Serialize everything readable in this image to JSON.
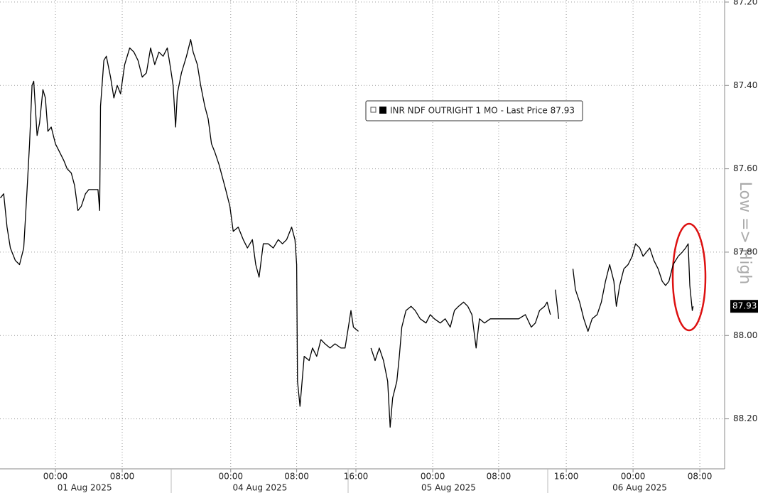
{
  "chart_data": {
    "type": "line",
    "series": [
      {
        "name": "INR NDF OUTRIGHT 1 MO - Last Price 87.93",
        "color": "#000000",
        "x": [
          -6.6,
          -6.2,
          -5.8,
          -5.4,
          -4.8,
          -4.3,
          -3.8,
          -3.4,
          -3.1,
          -2.8,
          -2.6,
          -2.2,
          -1.9,
          -1.5,
          -1.2,
          -0.9,
          -0.5,
          0,
          0.5,
          1.0,
          1.4,
          1.9,
          2.3,
          2.7,
          3.1,
          3.6,
          4.0,
          4.6,
          5.1,
          5.3,
          5.4,
          5.8,
          6.1,
          6.6,
          7.0,
          7.4,
          7.8,
          8.3,
          8.9,
          9.4,
          9.9,
          10.4,
          10.9,
          11.4,
          11.9,
          12.4,
          12.9,
          13.4,
          13.8,
          14.1,
          14.4,
          14.6,
          15.1,
          15.7,
          16.2,
          16.5,
          17.0,
          17.4,
          17.9,
          18.3,
          18.7,
          19.1,
          19.6,
          20.0,
          20.4,
          20.9,
          21.3,
          21.9,
          22.5,
          23.0,
          23.6,
          24.0,
          24.4,
          24.9,
          25.5,
          26.1,
          26.7,
          27.2,
          27.7,
          28.3,
          28.7,
          28.9,
          29.0,
          29.3,
          29.8,
          30.4,
          30.8,
          31.3,
          31.8,
          32.3,
          32.9,
          33.5,
          34.2,
          34.7,
          35.1,
          35.4,
          35.7,
          36.3,
          36.8,
          37.8,
          38.3,
          38.8,
          39.3,
          39.8,
          40.1,
          40.4,
          40.9,
          41.2,
          41.5,
          42.0,
          42.6,
          43.1,
          43.7,
          44.4,
          44.9,
          45.4,
          46.1,
          46.7,
          47.3,
          47.8,
          48.3,
          48.9,
          49.4,
          49.9,
          50.4,
          50.8,
          51.4,
          52.1,
          52.9,
          53.8,
          54.6,
          55.5,
          56.3,
          57.0,
          57.5,
          58.0,
          58.6,
          58.9,
          59.3,
          59.6,
          59.9,
          60.3,
          61.0,
          62.0,
          62.3,
          62.8,
          63.3,
          63.8,
          64.3,
          64.9,
          65.4,
          65.9,
          66.4,
          66.9,
          67.2,
          67.6,
          68.1,
          68.6,
          69.1,
          69.5,
          70.0,
          70.4,
          70.8,
          71.2,
          71.7,
          72.2,
          72.7,
          73.1,
          73.5,
          74.0,
          74.6,
          75.1,
          75.5,
          75.8,
          76.0,
          76.3,
          76.4
        ],
        "values": [
          87.67,
          87.66,
          87.74,
          87.79,
          87.82,
          87.83,
          87.79,
          87.65,
          87.54,
          87.4,
          87.39,
          87.52,
          87.49,
          87.41,
          87.43,
          87.51,
          87.5,
          87.54,
          87.56,
          87.58,
          87.6,
          87.61,
          87.64,
          87.7,
          87.69,
          87.66,
          87.65,
          87.65,
          87.65,
          87.7,
          87.45,
          87.34,
          87.33,
          87.38,
          87.43,
          87.4,
          87.42,
          87.35,
          87.31,
          87.32,
          87.34,
          87.38,
          87.37,
          87.31,
          87.35,
          87.32,
          87.33,
          87.31,
          87.36,
          87.4,
          87.5,
          87.42,
          87.37,
          87.33,
          87.29,
          87.32,
          87.35,
          87.4,
          87.45,
          87.48,
          87.54,
          87.56,
          87.59,
          87.62,
          87.65,
          87.69,
          87.75,
          87.74,
          87.77,
          87.79,
          87.77,
          87.83,
          87.86,
          87.78,
          87.78,
          87.79,
          87.77,
          87.78,
          87.77,
          87.74,
          87.77,
          87.83,
          88.11,
          88.17,
          88.05,
          88.06,
          88.03,
          88.05,
          88.01,
          88.02,
          88.03,
          88.02,
          88.03,
          88.03,
          87.98,
          87.94,
          87.98,
          87.99,
          null,
          88.03,
          88.06,
          88.03,
          88.06,
          88.11,
          88.22,
          88.15,
          88.11,
          88.05,
          87.98,
          87.94,
          87.93,
          87.94,
          87.96,
          87.97,
          87.95,
          87.96,
          87.97,
          87.96,
          87.98,
          87.94,
          87.93,
          87.92,
          87.93,
          87.95,
          88.03,
          87.96,
          87.97,
          87.96,
          87.96,
          87.96,
          87.96,
          87.96,
          87.95,
          87.98,
          87.97,
          87.94,
          87.93,
          87.92,
          87.95,
          null,
          87.89,
          87.96,
          null,
          87.84,
          87.89,
          87.92,
          87.96,
          87.99,
          87.96,
          87.95,
          87.92,
          87.87,
          87.83,
          87.87,
          87.93,
          87.88,
          87.84,
          87.83,
          87.81,
          87.78,
          87.79,
          87.81,
          87.8,
          87.79,
          87.82,
          87.84,
          87.87,
          87.88,
          87.87,
          87.83,
          87.81,
          87.8,
          87.79,
          87.78,
          87.88,
          87.94,
          87.93
        ]
      }
    ],
    "xlim": [
      -6.64,
      80.17
    ],
    "ylim": [
      87.195,
      88.32
    ],
    "y_inverted": true,
    "y_axis_side": "right",
    "grid": true,
    "xticks": [
      {
        "value": 0,
        "label": "00:00"
      },
      {
        "value": 8.0,
        "label": "08:00"
      },
      {
        "value": 21.0,
        "label": "00:00"
      },
      {
        "value": 28.9,
        "label": "08:00"
      },
      {
        "value": 36.0,
        "label": "16:00"
      },
      {
        "value": 45.2,
        "label": "00:00"
      },
      {
        "value": 53.1,
        "label": "08:00"
      },
      {
        "value": 61.2,
        "label": "16:00"
      },
      {
        "value": 69.2,
        "label": "00:00"
      },
      {
        "value": 77.2,
        "label": "08:00"
      }
    ],
    "date_labels": [
      {
        "value": 3.5,
        "label": "01 Aug 2025"
      },
      {
        "value": 24.5,
        "label": "04 Aug 2025"
      },
      {
        "value": 47.1,
        "label": "05 Aug 2025"
      },
      {
        "value": 70.0,
        "label": "06 Aug 2025"
      }
    ],
    "yticks": [
      {
        "value": 87.2,
        "label": "87.20"
      },
      {
        "value": 87.4,
        "label": "87.40"
      },
      {
        "value": 87.6,
        "label": "87.60"
      },
      {
        "value": 87.8,
        "label": "87.80"
      },
      {
        "value": 88.0,
        "label": "88.00"
      },
      {
        "value": 88.2,
        "label": "88.20"
      }
    ],
    "last_price": 87.93,
    "annotation": "Low => High"
  }
}
